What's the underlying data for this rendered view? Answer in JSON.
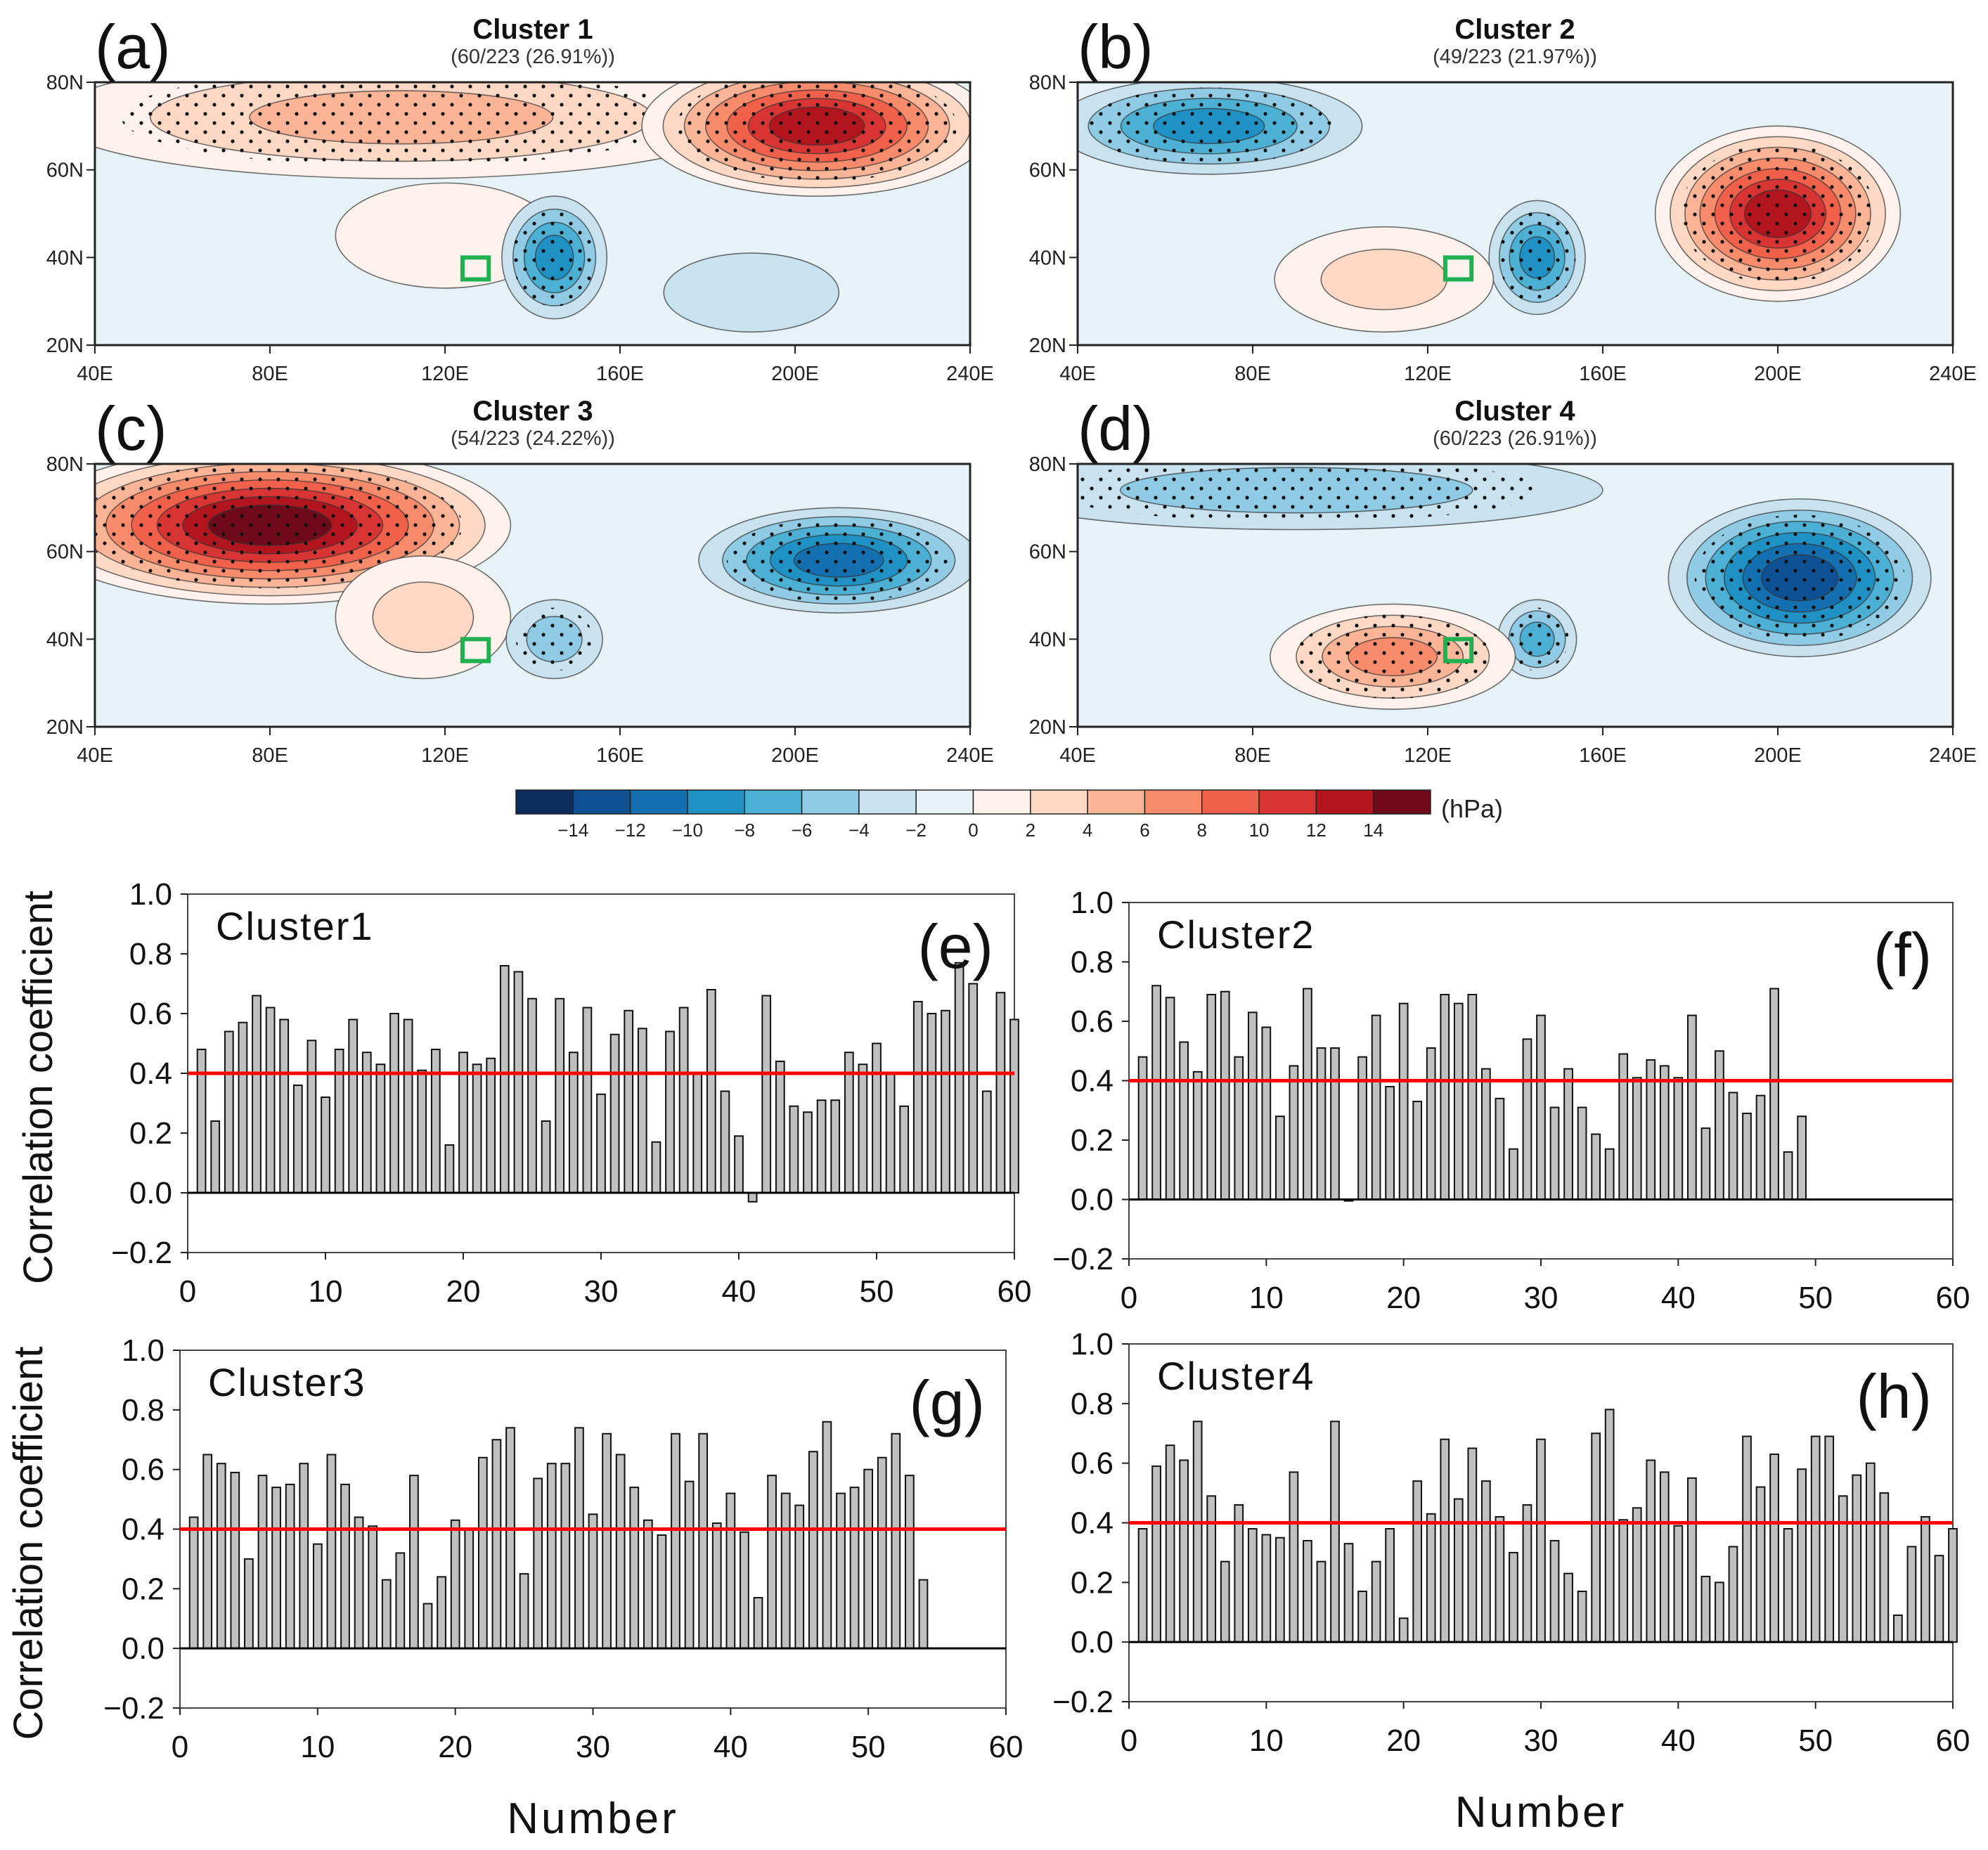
{
  "maps": [
    {
      "panel": "(a)",
      "title": "Cluster 1",
      "subtitle": "(60/223 (26.91%))",
      "centers": [
        {
          "lon": 110,
          "lat": 72,
          "value": 6,
          "rlon": 80,
          "rlat": 14
        },
        {
          "lon": 205,
          "lat": 70,
          "value": 14,
          "rlon": 40,
          "rlat": 16
        },
        {
          "lon": 120,
          "lat": 45,
          "value": 2,
          "rlon": 25,
          "rlat": 12
        },
        {
          "lon": 145,
          "lat": 40,
          "value": -10,
          "rlon": 12,
          "rlat": 14
        },
        {
          "lon": 190,
          "lat": 32,
          "value": -4,
          "rlon": 20,
          "rlat": 9
        }
      ]
    },
    {
      "panel": "(b)",
      "title": "Cluster 2",
      "subtitle": "(49/223 (21.97%))",
      "centers": [
        {
          "lon": 70,
          "lat": 70,
          "value": -10,
          "rlon": 35,
          "rlat": 11
        },
        {
          "lon": 145,
          "lat": 40,
          "value": -10,
          "rlon": 11,
          "rlat": 13
        },
        {
          "lon": 200,
          "lat": 50,
          "value": 14,
          "rlon": 28,
          "rlat": 20
        },
        {
          "lon": 110,
          "lat": 35,
          "value": 4,
          "rlon": 25,
          "rlat": 12
        }
      ]
    },
    {
      "panel": "(c)",
      "title": "Cluster 3",
      "subtitle": "(54/223 (24.22%))",
      "centers": [
        {
          "lon": 80,
          "lat": 66,
          "value": 16,
          "rlon": 55,
          "rlat": 18
        },
        {
          "lon": 115,
          "lat": 45,
          "value": 4,
          "rlon": 20,
          "rlat": 14
        },
        {
          "lon": 210,
          "lat": 58,
          "value": -12,
          "rlon": 32,
          "rlat": 12
        },
        {
          "lon": 145,
          "lat": 40,
          "value": -6,
          "rlon": 11,
          "rlat": 9
        }
      ]
    },
    {
      "panel": "(d)",
      "title": "Cluster 4",
      "subtitle": "(60/223 (26.91%))",
      "centers": [
        {
          "lon": 90,
          "lat": 74,
          "value": -6,
          "rlon": 70,
          "rlat": 9
        },
        {
          "lon": 205,
          "lat": 54,
          "value": -14,
          "rlon": 30,
          "rlat": 18
        },
        {
          "lon": 145,
          "lat": 40,
          "value": -8,
          "rlon": 9,
          "rlat": 9
        },
        {
          "lon": 112,
          "lat": 36,
          "value": 8,
          "rlon": 28,
          "rlat": 12
        }
      ]
    }
  ],
  "map_axes": {
    "lon_labels": [
      "40E",
      "80E",
      "120E",
      "160E",
      "200E",
      "240E"
    ],
    "lon_values": [
      40,
      80,
      120,
      160,
      200,
      240
    ],
    "lat_labels": [
      "20N",
      "40N",
      "60N",
      "80N"
    ],
    "lat_values": [
      20,
      40,
      60,
      80
    ],
    "lon_range": [
      40,
      240
    ],
    "lat_range": [
      20,
      80
    ],
    "target_box": {
      "lon": [
        124,
        130
      ],
      "lat": [
        35,
        40
      ]
    }
  },
  "colorbar": {
    "unit": "(hPa)",
    "labels": [
      "−14",
      "−12",
      "−10",
      "−8",
      "−6",
      "−4",
      "−2",
      "0",
      "2",
      "4",
      "6",
      "8",
      "10",
      "12",
      "14"
    ],
    "colors": [
      "#0a2d5e",
      "#0d5194",
      "#1470b0",
      "#1f91c4",
      "#4cb0d4",
      "#8fcbe4",
      "#c8e2ef",
      "#e7f2f7",
      "#fff2ec",
      "#fdd8c5",
      "#fcb497",
      "#f98b6d",
      "#f0604a",
      "#d93434",
      "#b3151f",
      "#6e0a1a"
    ],
    "box_color": "#1fb050"
  },
  "chart_data": [
    {
      "type": "bar",
      "panel": "(e)",
      "title": "Cluster1",
      "ylabel": "Correlation coefficient",
      "xlabel": "",
      "xlim": [
        0,
        60
      ],
      "ylim": [
        -0.2,
        1.0
      ],
      "threshold": 0.4,
      "threshold_color": "#ff0000",
      "bar_color": "#c0c0c0",
      "xticks": [
        "0",
        "10",
        "20",
        "30",
        "40",
        "50",
        "60"
      ],
      "yticks": [
        "−0.2",
        "0.0",
        "0.2",
        "0.4",
        "0.6",
        "0.8",
        "1.0"
      ],
      "values": [
        0.48,
        0.24,
        0.54,
        0.57,
        0.66,
        0.62,
        0.58,
        0.36,
        0.51,
        0.32,
        0.48,
        0.58,
        0.47,
        0.43,
        0.6,
        0.58,
        0.41,
        0.48,
        0.16,
        0.47,
        0.43,
        0.45,
        0.76,
        0.74,
        0.65,
        0.24,
        0.65,
        0.47,
        0.62,
        0.33,
        0.53,
        0.61,
        0.55,
        0.17,
        0.54,
        0.62,
        0.4,
        0.68,
        0.34,
        0.19,
        -0.03,
        0.66,
        0.44,
        0.29,
        0.27,
        0.31,
        0.31,
        0.47,
        0.43,
        0.5,
        0.4,
        0.29,
        0.64,
        0.6,
        0.61,
        0.77,
        0.7,
        0.34,
        0.67,
        0.58
      ]
    },
    {
      "type": "bar",
      "panel": "(f)",
      "title": "Cluster2",
      "ylabel": "",
      "xlabel": "",
      "xlim": [
        0,
        60
      ],
      "ylim": [
        -0.2,
        1.0
      ],
      "threshold": 0.4,
      "threshold_color": "#ff0000",
      "bar_color": "#c0c0c0",
      "xticks": [
        "0",
        "10",
        "20",
        "30",
        "40",
        "50",
        "60"
      ],
      "yticks": [
        "−0.2",
        "0.0",
        "0.2",
        "0.4",
        "0.6",
        "0.8",
        "1.0"
      ],
      "values": [
        0.48,
        0.72,
        0.68,
        0.53,
        0.43,
        0.69,
        0.7,
        0.48,
        0.63,
        0.58,
        0.28,
        0.45,
        0.71,
        0.51,
        0.51,
        -0.005,
        0.48,
        0.62,
        0.38,
        0.66,
        0.33,
        0.51,
        0.69,
        0.66,
        0.69,
        0.44,
        0.34,
        0.17,
        0.54,
        0.62,
        0.31,
        0.44,
        0.31,
        0.22,
        0.17,
        0.49,
        0.41,
        0.47,
        0.45,
        0.41,
        0.62,
        0.24,
        0.5,
        0.36,
        0.29,
        0.35,
        0.71,
        0.16,
        0.28
      ]
    },
    {
      "type": "bar",
      "panel": "(g)",
      "title": "Cluster3",
      "ylabel": "Correlation coefficient",
      "xlabel": "Number",
      "xlim": [
        0,
        60
      ],
      "ylim": [
        -0.2,
        1.0
      ],
      "threshold": 0.4,
      "threshold_color": "#ff0000",
      "bar_color": "#c0c0c0",
      "xticks": [
        "0",
        "10",
        "20",
        "30",
        "40",
        "50",
        "60"
      ],
      "yticks": [
        "−0.2",
        "0.0",
        "0.2",
        "0.4",
        "0.6",
        "0.8",
        "1.0"
      ],
      "values": [
        0.44,
        0.65,
        0.62,
        0.59,
        0.3,
        0.58,
        0.54,
        0.55,
        0.62,
        0.35,
        0.65,
        0.55,
        0.44,
        0.41,
        0.23,
        0.32,
        0.58,
        0.15,
        0.24,
        0.43,
        0.4,
        0.64,
        0.7,
        0.74,
        0.25,
        0.57,
        0.62,
        0.62,
        0.74,
        0.45,
        0.72,
        0.65,
        0.54,
        0.43,
        0.38,
        0.72,
        0.56,
        0.72,
        0.42,
        0.52,
        0.39,
        0.17,
        0.58,
        0.52,
        0.48,
        0.66,
        0.76,
        0.52,
        0.54,
        0.6,
        0.64,
        0.72,
        0.58,
        0.23
      ]
    },
    {
      "type": "bar",
      "panel": "(h)",
      "title": "Cluster4",
      "ylabel": "",
      "xlabel": "Number",
      "xlim": [
        0,
        60
      ],
      "ylim": [
        -0.2,
        1.0
      ],
      "threshold": 0.4,
      "threshold_color": "#ff0000",
      "bar_color": "#c0c0c0",
      "xticks": [
        "0",
        "10",
        "20",
        "30",
        "40",
        "50",
        "60"
      ],
      "yticks": [
        "−0.2",
        "0.0",
        "0.2",
        "0.4",
        "0.6",
        "0.8",
        "1.0"
      ],
      "values": [
        0.38,
        0.59,
        0.66,
        0.61,
        0.74,
        0.49,
        0.27,
        0.46,
        0.38,
        0.36,
        0.35,
        0.57,
        0.34,
        0.27,
        0.74,
        0.33,
        0.17,
        0.27,
        0.38,
        0.08,
        0.54,
        0.43,
        0.68,
        0.48,
        0.65,
        0.54,
        0.42,
        0.3,
        0.46,
        0.68,
        0.34,
        0.23,
        0.17,
        0.7,
        0.78,
        0.41,
        0.45,
        0.61,
        0.57,
        0.39,
        0.55,
        0.22,
        0.2,
        0.32,
        0.69,
        0.52,
        0.63,
        0.38,
        0.58,
        0.69,
        0.69,
        0.49,
        0.56,
        0.6,
        0.5,
        0.09,
        0.32,
        0.42,
        0.29,
        0.38
      ]
    }
  ]
}
